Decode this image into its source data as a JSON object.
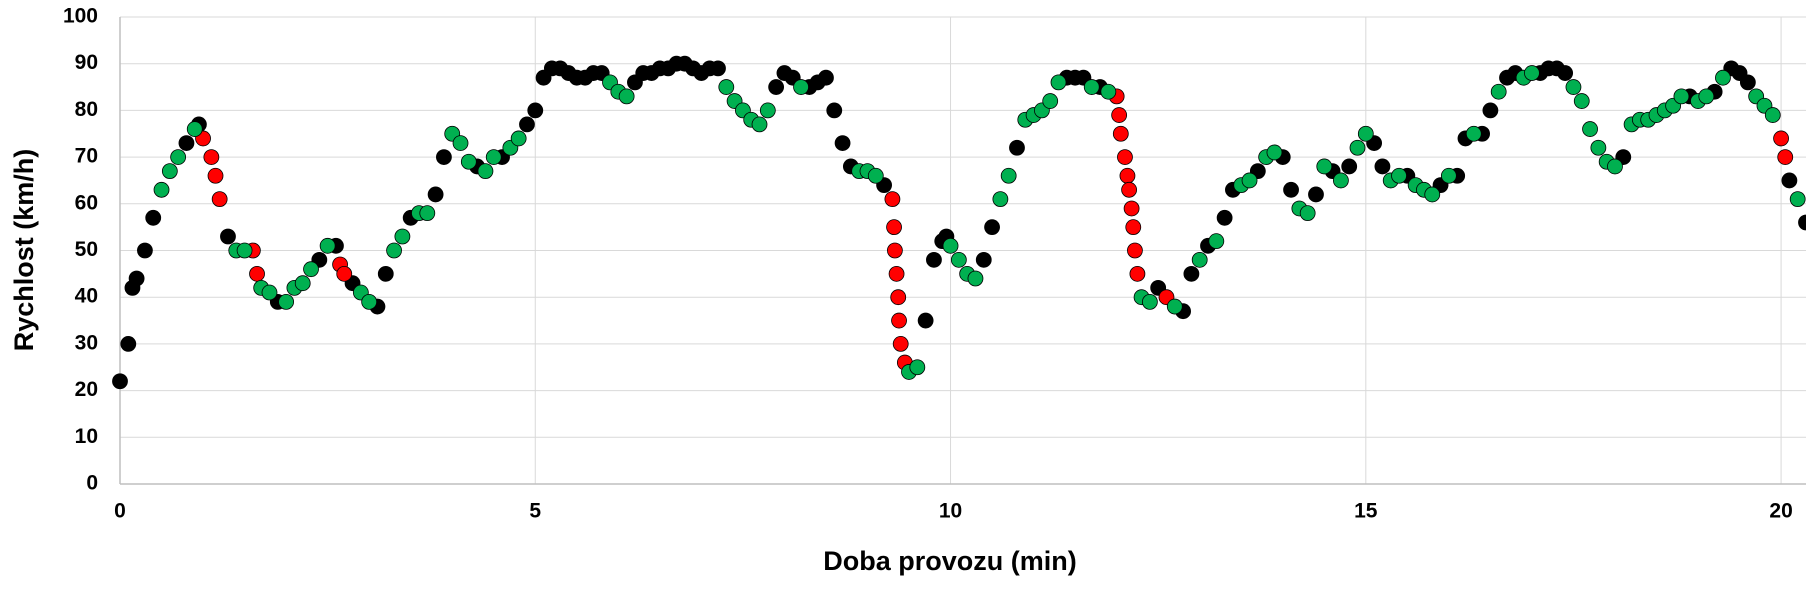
{
  "chart_data": {
    "type": "scatter",
    "xlabel": "Doba provozu (min)",
    "ylabel": "Rychlost (km/h)",
    "xlim": [
      0,
      20.3
    ],
    "ylim": [
      0,
      100
    ],
    "xticks": [
      0,
      5,
      10,
      15,
      20
    ],
    "yticks": [
      0,
      10,
      20,
      30,
      40,
      50,
      60,
      70,
      80,
      90,
      100
    ],
    "grid": true,
    "series": [
      {
        "color": "#000000",
        "x": [
          0,
          0.1,
          0.15,
          0.2,
          0.3,
          0.4,
          0.8,
          0.95,
          1.3,
          1.9,
          2.4,
          2.6,
          2.8,
          3.1,
          3.2,
          3.5,
          3.8,
          3.9,
          4.3,
          4.6,
          4.9,
          5.0,
          5.1,
          5.2,
          5.3,
          5.4,
          5.5,
          5.6,
          5.7,
          5.8,
          6.2,
          6.3,
          6.4,
          6.5,
          6.6,
          6.7,
          6.8,
          6.9,
          7.0,
          7.1,
          7.2,
          7.9,
          8.0,
          8.1,
          8.3,
          8.4,
          8.5,
          8.6,
          8.7,
          8.8,
          9.2,
          9.7,
          9.8,
          9.9,
          9.95,
          10.4,
          10.5,
          10.8,
          11.4,
          11.5,
          11.6,
          11.8,
          12.5,
          12.8,
          12.9,
          13.1,
          13.3,
          13.4,
          13.7,
          14.0,
          14.1,
          14.4,
          14.6,
          14.8,
          15.1,
          15.2,
          15.5,
          15.9,
          16.1,
          16.2,
          16.4,
          16.5,
          16.7,
          16.8,
          17.1,
          17.2,
          17.3,
          17.4,
          18.1,
          18.9,
          19.2,
          19.4,
          19.5,
          19.6,
          20.1,
          20.3
        ],
        "values": [
          22,
          30,
          42,
          44,
          50,
          57,
          73,
          77,
          53,
          39,
          48,
          51,
          43,
          38,
          45,
          57,
          62,
          70,
          68,
          70,
          77,
          80,
          87,
          89,
          89,
          88,
          87,
          87,
          88,
          88,
          86,
          88,
          88,
          89,
          89,
          90,
          90,
          89,
          88,
          89,
          89,
          85,
          88,
          87,
          85,
          86,
          87,
          80,
          73,
          68,
          64,
          35,
          48,
          52,
          53,
          48,
          55,
          72,
          87,
          87,
          87,
          85,
          42,
          37,
          45,
          51,
          57,
          63,
          67,
          70,
          63,
          62,
          67,
          68,
          73,
          68,
          66,
          64,
          66,
          74,
          75,
          80,
          87,
          88,
          88,
          89,
          89,
          88,
          70,
          83,
          84,
          89,
          88,
          86,
          65,
          56
        ]
      },
      {
        "color": "#ff0000",
        "x": [
          1.0,
          1.1,
          1.15,
          1.2,
          1.6,
          1.65,
          2.65,
          2.7,
          9.3,
          9.32,
          9.33,
          9.35,
          9.37,
          9.38,
          9.4,
          9.45,
          12.0,
          12.03,
          12.05,
          12.1,
          12.13,
          12.15,
          12.18,
          12.2,
          12.22,
          12.25,
          12.6,
          20.0,
          20.05
        ],
        "values": [
          74,
          70,
          66,
          61,
          50,
          45,
          47,
          45,
          61,
          55,
          50,
          45,
          40,
          35,
          30,
          26,
          83,
          79,
          75,
          70,
          66,
          63,
          59,
          55,
          50,
          45,
          40,
          74,
          70
        ]
      },
      {
        "color": "#00b050",
        "x": [
          0.5,
          0.6,
          0.7,
          0.9,
          1.4,
          1.5,
          1.7,
          1.8,
          2.0,
          2.1,
          2.2,
          2.3,
          2.5,
          2.9,
          3.0,
          3.3,
          3.4,
          3.6,
          3.7,
          4.0,
          4.1,
          4.2,
          4.4,
          4.5,
          4.7,
          4.8,
          5.9,
          6.0,
          6.1,
          7.3,
          7.4,
          7.5,
          7.6,
          7.7,
          7.8,
          8.2,
          8.9,
          9.0,
          9.1,
          9.5,
          9.6,
          10.0,
          10.1,
          10.2,
          10.3,
          10.6,
          10.7,
          10.9,
          11.0,
          11.1,
          11.2,
          11.3,
          11.7,
          11.9,
          12.3,
          12.4,
          12.7,
          13.0,
          13.2,
          13.5,
          13.6,
          13.8,
          13.9,
          14.2,
          14.3,
          14.5,
          14.7,
          14.9,
          15.0,
          15.3,
          15.4,
          15.6,
          15.7,
          15.8,
          16.0,
          16.3,
          16.6,
          16.9,
          17.0,
          17.5,
          17.6,
          17.7,
          17.8,
          17.9,
          18.0,
          18.2,
          18.3,
          18.4,
          18.5,
          18.6,
          18.7,
          18.8,
          19.0,
          19.1,
          19.3,
          19.7,
          19.8,
          19.9,
          20.2
        ],
        "values": [
          63,
          67,
          70,
          76,
          50,
          50,
          42,
          41,
          39,
          42,
          43,
          46,
          51,
          41,
          39,
          50,
          53,
          58,
          58,
          75,
          73,
          69,
          67,
          70,
          72,
          74,
          86,
          84,
          83,
          85,
          82,
          80,
          78,
          77,
          80,
          85,
          67,
          67,
          66,
          24,
          25,
          51,
          48,
          45,
          44,
          61,
          66,
          78,
          79,
          80,
          82,
          86,
          85,
          84,
          40,
          39,
          38,
          48,
          52,
          64,
          65,
          70,
          71,
          59,
          58,
          68,
          65,
          72,
          75,
          65,
          66,
          64,
          63,
          62,
          66,
          75,
          84,
          87,
          88,
          85,
          82,
          76,
          72,
          69,
          68,
          77,
          78,
          78,
          79,
          80,
          81,
          83,
          82,
          83,
          87,
          83,
          81,
          79,
          61
        ]
      }
    ]
  }
}
